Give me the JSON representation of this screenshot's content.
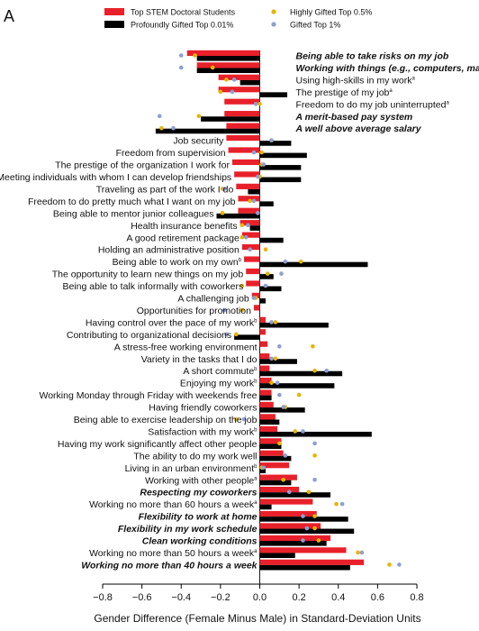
{
  "panel_label": "A",
  "colors": {
    "stem": "#e8202a",
    "profound": "#000000",
    "gifted05": "#e8b400",
    "gifted1": "#8d9fd4"
  },
  "chart_data": {
    "type": "bar",
    "orientation": "horizontal",
    "xlabel": "Gender Difference (Female Minus Male) in Standard-Deviation Units",
    "xlim": [
      -0.8,
      0.8
    ],
    "xticks": [
      "−0.8",
      "−0.6",
      "−0.4",
      "−0.2",
      "0.0",
      "0.2",
      "0.4",
      "0.6",
      "0.8"
    ],
    "xtick_values": [
      -0.8,
      -0.6,
      -0.4,
      -0.2,
      0.0,
      0.2,
      0.4,
      0.6,
      0.8
    ],
    "legend": [
      {
        "key": "stem",
        "label": "Top STEM Doctoral Students",
        "kind": "bar",
        "color": "#e8202a"
      },
      {
        "key": "profound",
        "label": "Profoundly Gifted Top 0.01%",
        "kind": "bar",
        "color": "#000000"
      },
      {
        "key": "gifted05",
        "label": "Highly Gifted Top 0.5%",
        "kind": "dot",
        "color": "#e8b400"
      },
      {
        "key": "gifted1",
        "label": "Gifted Top 1%",
        "kind": "dot",
        "color": "#8d9fd4"
      }
    ],
    "categories": [
      {
        "label": "Being able to take risks on my job",
        "bold": true,
        "side": "right",
        "stem": -0.37,
        "profound": -0.32,
        "g05": -0.33,
        "g1": -0.4
      },
      {
        "label": "Working with things (e.g., computers, machines)",
        "bold": true,
        "side": "right",
        "stem": -0.32,
        "profound": -0.32,
        "g05": -0.24,
        "g1": -0.4
      },
      {
        "label": "Using high-skills in my work",
        "sup": "a",
        "bold": false,
        "side": "right",
        "stem": -0.21,
        "profound": -0.1,
        "g05": -0.17,
        "g1": -0.13
      },
      {
        "label": "The prestige of my job",
        "sup": "a",
        "bold": false,
        "side": "right",
        "stem": -0.21,
        "profound": 0.14,
        "g05": -0.2,
        "g1": -0.14
      },
      {
        "label": "Freedom to do my job uninterrupted",
        "sup": "a",
        "bold": false,
        "side": "right",
        "stem": -0.18,
        "profound": 0.0,
        "g05": 0.0,
        "g1": -0.02
      },
      {
        "label": "A merit-based pay system",
        "bold": true,
        "side": "right",
        "stem": -0.18,
        "profound": -0.3,
        "g05": -0.31,
        "g1": -0.51
      },
      {
        "label": "A well above average salary",
        "bold": true,
        "side": "right",
        "stem": -0.17,
        "profound": -0.53,
        "g05": -0.5,
        "g1": -0.44
      },
      {
        "label": "Job security",
        "bold": false,
        "side": "left",
        "stem": -0.17,
        "profound": 0.16,
        "g05": 0.06,
        "g1": 0.06
      },
      {
        "label": "Freedom from supervision",
        "bold": false,
        "side": "left",
        "stem": -0.16,
        "profound": 0.24,
        "g05": 0.01,
        "g1": -0.03
      },
      {
        "label": "The prestige of the organization I work for",
        "bold": false,
        "side": "left",
        "stem": -0.14,
        "profound": 0.21,
        "g05": 0.01,
        "g1": 0.02
      },
      {
        "label": "Meeting individuals with whom I can develop friendships",
        "bold": false,
        "side": "left",
        "stem": -0.13,
        "profound": 0.21,
        "g05": 0.0,
        "g1": -0.01
      },
      {
        "label": "Traveling as part of the work I do",
        "bold": false,
        "side": "left",
        "stem": -0.12,
        "profound": -0.06,
        "g05": -0.19,
        "g1": -0.18
      },
      {
        "label": "Freedom to do pretty much what I want on my job",
        "bold": false,
        "side": "left",
        "stem": -0.11,
        "profound": 0.07,
        "g05": -0.05,
        "g1": -0.03
      },
      {
        "label": "Being able to mentor junior colleagues",
        "bold": false,
        "side": "left",
        "stem": -0.11,
        "profound": -0.22,
        "g05": -0.19,
        "g1": -0.01
      },
      {
        "label": "Health insurance benefits",
        "bold": false,
        "side": "left",
        "stem": -0.1,
        "profound": -0.05,
        "g05": -0.09,
        "g1": -0.06
      },
      {
        "label": "A good retirement package",
        "bold": false,
        "side": "left",
        "stem": -0.09,
        "profound": 0.12,
        "g05": -0.09,
        "g1": -0.07
      },
      {
        "label": "Holding an administrative position",
        "bold": false,
        "side": "left",
        "stem": -0.09,
        "profound": 0.0,
        "g05": 0.03,
        "g1": -0.05
      },
      {
        "label": "Being able to work on my own",
        "sup": "b",
        "bold": false,
        "side": "left",
        "stem": -0.08,
        "profound": 0.55,
        "g05": 0.21,
        "g1": 0.13
      },
      {
        "label": "The opportunity to learn new things on my job",
        "bold": false,
        "side": "left",
        "stem": -0.07,
        "profound": 0.07,
        "g05": 0.04,
        "g1": 0.11
      },
      {
        "label": "Being able to talk informally with coworkers",
        "bold": false,
        "side": "left",
        "stem": -0.07,
        "profound": 0.11,
        "g05": -0.09,
        "g1": 0.03
      },
      {
        "label": "A challenging job",
        "bold": false,
        "side": "left",
        "stem": -0.04,
        "profound": 0.03,
        "g05": -0.02,
        "g1": -0.03
      },
      {
        "label": "Opportunities for promotion",
        "bold": false,
        "side": "left",
        "stem": -0.03,
        "profound": 0.0,
        "g05": -0.09,
        "g1": -0.18
      },
      {
        "label": "Having control over the pace of my work",
        "sup": "b",
        "bold": false,
        "side": "left",
        "stem": 0.03,
        "profound": 0.35,
        "g05": 0.08,
        "g1": 0.06
      },
      {
        "label": "Contributing to organizational decisions",
        "bold": false,
        "side": "left",
        "stem": 0.03,
        "profound": -0.13,
        "g05": -0.12,
        "g1": -0.17
      },
      {
        "label": "A stress-free working environment",
        "bold": false,
        "side": "left",
        "stem": 0.04,
        "profound": 0.0,
        "g05": 0.27,
        "g1": 0.1
      },
      {
        "label": "Variety in the tasks that I do",
        "bold": false,
        "side": "left",
        "stem": 0.05,
        "profound": 0.19,
        "g05": 0.08,
        "g1": 0.06
      },
      {
        "label": "A short commute",
        "sup": "b",
        "bold": false,
        "side": "left",
        "stem": 0.05,
        "profound": 0.42,
        "g05": 0.28,
        "g1": 0.34
      },
      {
        "label": "Enjoying my work",
        "sup": "b",
        "bold": false,
        "side": "left",
        "stem": 0.06,
        "profound": 0.38,
        "g05": 0.06,
        "g1": 0.09
      },
      {
        "label": "Working Monday through Friday with weekends free",
        "bold": false,
        "side": "left",
        "stem": 0.06,
        "profound": 0.06,
        "g05": 0.2,
        "g1": 0.1
      },
      {
        "label": "Having friendly coworkers",
        "bold": false,
        "side": "left",
        "stem": 0.07,
        "profound": 0.23,
        "g05": 0.13,
        "g1": 0.12
      },
      {
        "label": "Being able to exercise leadership on the job",
        "bold": false,
        "side": "left",
        "stem": 0.08,
        "profound": 0.1,
        "g05": -0.12,
        "g1": -0.08
      },
      {
        "label": "Satisfaction with my work",
        "sup": "b",
        "bold": false,
        "side": "left",
        "stem": 0.09,
        "profound": 0.57,
        "g05": 0.18,
        "g1": 0.22
      },
      {
        "label": "Having my work significantly affect other people",
        "bold": false,
        "side": "left",
        "stem": 0.11,
        "profound": 0.11,
        "g05": 0.1,
        "g1": 0.28
      },
      {
        "label": "The ability to do my work well",
        "bold": false,
        "side": "left",
        "stem": 0.12,
        "profound": 0.16,
        "g05": 0.28,
        "g1": 0.13
      },
      {
        "label": "Living in an urban environment",
        "sup": "b",
        "bold": false,
        "side": "left",
        "stem": 0.15,
        "profound": 0.03,
        "g05": 0.01,
        "g1": 0.02
      },
      {
        "label": "Working with other people",
        "sup": "a",
        "bold": false,
        "side": "left",
        "stem": 0.19,
        "profound": 0.16,
        "g05": 0.12,
        "g1": 0.28
      },
      {
        "label": "Respecting my coworkers",
        "bold": true,
        "side": "left",
        "stem": 0.2,
        "profound": 0.36,
        "g05": 0.25,
        "g1": 0.15
      },
      {
        "label": "Working no more than 60 hours a week",
        "sup": "a",
        "bold": false,
        "side": "left",
        "stem": 0.27,
        "profound": 0.06,
        "g05": 0.39,
        "g1": 0.42
      },
      {
        "label": "Flexibility to work at home",
        "bold": true,
        "side": "left",
        "stem": 0.29,
        "profound": 0.45,
        "g05": 0.28,
        "g1": 0.22
      },
      {
        "label": "Flexibility in my work schedule",
        "bold": true,
        "side": "left",
        "stem": 0.31,
        "profound": 0.48,
        "g05": 0.28,
        "g1": 0.24
      },
      {
        "label": "Clean working conditions",
        "bold": true,
        "side": "left",
        "stem": 0.36,
        "profound": 0.34,
        "g05": 0.3,
        "g1": 0.22
      },
      {
        "label": "Working no more than 50 hours a week",
        "sup": "a",
        "bold": false,
        "side": "left",
        "stem": 0.44,
        "profound": 0.18,
        "g05": 0.5,
        "g1": 0.52
      },
      {
        "label": "Working no more than 40 hours a week",
        "bold": true,
        "side": "left",
        "stem": 0.53,
        "profound": 0.46,
        "g05": 0.66,
        "g1": 0.71
      }
    ]
  }
}
